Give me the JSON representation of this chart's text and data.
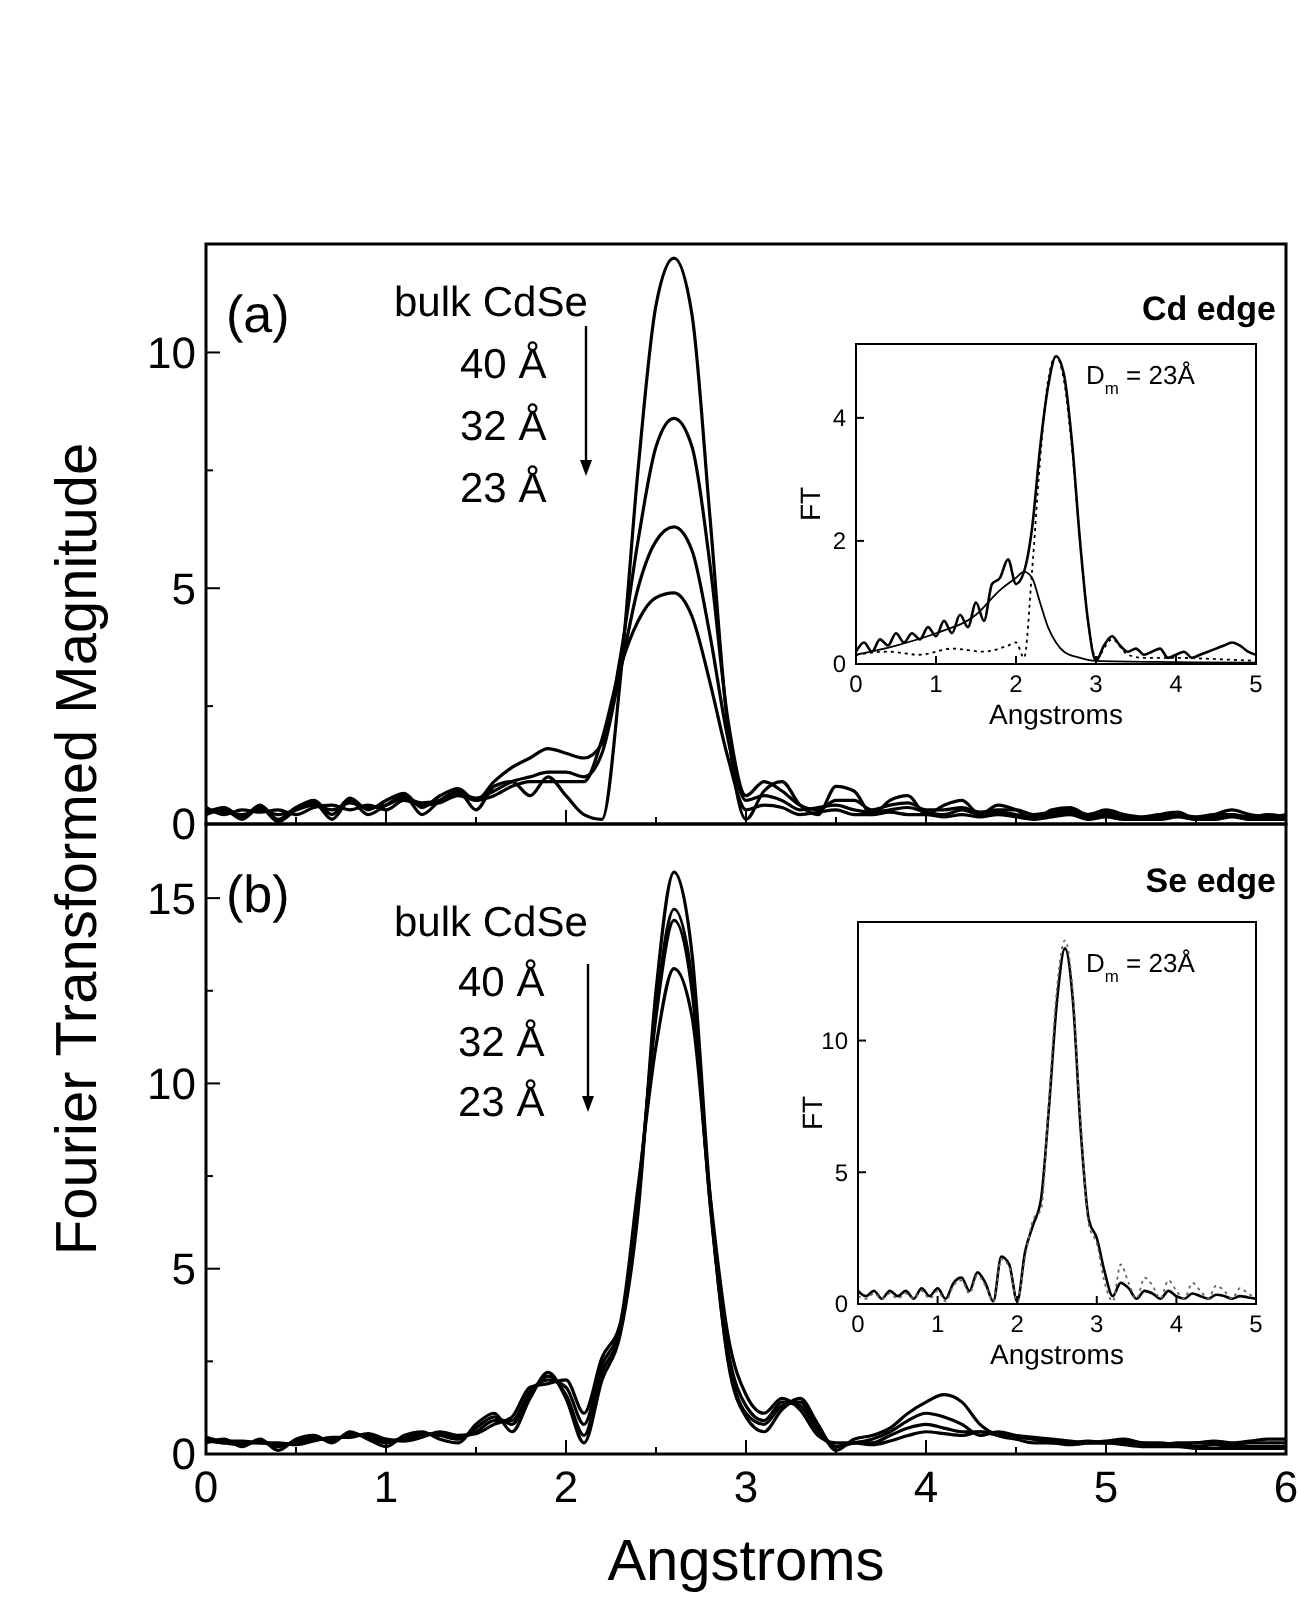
{
  "chart_data": [
    {
      "type": "line",
      "ylabel": "Fourier Transformed Magnitude",
      "annotations": [
        "(a)",
        "Cd edge",
        "bulk CdSe",
        "40 Å",
        "32 Å",
        "23 Å"
      ],
      "xlim": [
        0,
        6
      ],
      "ylim": [
        0,
        12.3
      ],
      "tick_labels": "y",
      "line_style": "solid",
      "xticks": [
        0,
        {
          "value": 0.5,
          "label": null
        },
        1,
        {
          "value": 1.5,
          "label": null
        },
        2,
        {
          "value": 2.5,
          "label": null
        },
        3,
        {
          "value": 3.5,
          "label": null
        },
        4,
        {
          "value": 4.5,
          "label": null
        },
        5,
        {
          "value": 5.5,
          "label": null
        },
        6
      ],
      "yticks": [
        0,
        {
          "value": 2.5,
          "label": null
        },
        5,
        {
          "value": 7.5,
          "label": null
        },
        10
      ],
      "x": [
        0,
        0.1,
        0.2,
        0.3,
        0.4,
        0.5,
        0.6,
        0.7,
        0.8,
        0.9,
        1,
        1.1,
        1.2,
        1.3,
        1.4,
        1.5,
        1.6,
        1.7,
        1.8,
        1.9,
        2,
        2.1,
        2.2,
        2.3,
        2.4,
        2.5,
        2.6,
        2.7,
        2.8,
        2.9,
        3,
        3.1,
        3.2,
        3.3,
        3.4,
        3.5,
        3.6,
        3.7,
        3.8,
        3.9,
        4,
        4.1,
        4.2,
        4.3,
        4.4,
        4.5,
        4.6,
        4.7,
        4.8,
        4.9,
        5,
        5.1,
        5.2,
        5.3,
        5.4,
        5.5,
        5.6,
        5.7,
        5.8,
        5.9,
        6
      ],
      "series": [
        {
          "color": "#000000",
          "values": [
            0.2,
            0.3,
            0.1,
            0.35,
            0.05,
            0.3,
            0.45,
            0.1,
            0.5,
            0.2,
            0.4,
            0.6,
            0.2,
            0.5,
            0.7,
            0.3,
            0.8,
            0.9,
            0.6,
            1.0,
            0.6,
            0.2,
            0.1,
            3.0,
            7.5,
            11.0,
            12.0,
            10.8,
            6.5,
            2.0,
            0.1,
            0.7,
            0.9,
            0.4,
            0.2,
            0.8,
            0.7,
            0.2,
            0.5,
            0.6,
            0.2,
            0.4,
            0.5,
            0.2,
            0.4,
            0.3,
            0.1,
            0.3,
            0.35,
            0.2,
            0.3,
            0.2,
            0.1,
            0.2,
            0.25,
            0.1,
            0.2,
            0.3,
            0.2,
            0.15,
            0.2
          ]
        },
        {
          "color": "#000000",
          "values": [
            0.25,
            0.35,
            0.15,
            0.4,
            0.1,
            0.35,
            0.5,
            0.2,
            0.55,
            0.3,
            0.5,
            0.65,
            0.35,
            0.6,
            0.75,
            0.5,
            0.9,
            1.2,
            1.4,
            1.6,
            1.5,
            1.4,
            1.7,
            3.5,
            6.0,
            8.0,
            8.6,
            8.0,
            5.5,
            2.2,
            0.6,
            0.9,
            0.7,
            0.4,
            0.3,
            0.5,
            0.5,
            0.3,
            0.4,
            0.45,
            0.3,
            0.3,
            0.35,
            0.25,
            0.3,
            0.3,
            0.2,
            0.25,
            0.3,
            0.2,
            0.25,
            0.2,
            0.15,
            0.2,
            0.2,
            0.15,
            0.2,
            0.2,
            0.15,
            0.2,
            0.15
          ]
        },
        {
          "color": "#000000",
          "values": [
            0.3,
            0.25,
            0.2,
            0.3,
            0.2,
            0.3,
            0.4,
            0.3,
            0.45,
            0.35,
            0.4,
            0.55,
            0.45,
            0.5,
            0.65,
            0.55,
            0.7,
            0.9,
            1.0,
            1.1,
            1.1,
            1.0,
            1.5,
            3.2,
            5.0,
            6.0,
            6.3,
            5.8,
            4.0,
            1.8,
            0.5,
            0.6,
            0.5,
            0.3,
            0.35,
            0.4,
            0.3,
            0.25,
            0.3,
            0.35,
            0.25,
            0.2,
            0.3,
            0.2,
            0.25,
            0.2,
            0.15,
            0.2,
            0.25,
            0.15,
            0.2,
            0.15,
            0.1,
            0.15,
            0.2,
            0.1,
            0.15,
            0.2,
            0.1,
            0.15,
            0.1
          ]
        },
        {
          "color": "#000000",
          "values": [
            0.35,
            0.2,
            0.3,
            0.25,
            0.3,
            0.2,
            0.35,
            0.4,
            0.3,
            0.4,
            0.3,
            0.5,
            0.4,
            0.45,
            0.6,
            0.5,
            0.6,
            0.8,
            0.9,
            0.9,
            0.9,
            0.9,
            1.8,
            3.3,
            4.3,
            4.8,
            4.9,
            4.4,
            3.0,
            1.4,
            0.3,
            0.4,
            0.35,
            0.2,
            0.25,
            0.3,
            0.2,
            0.2,
            0.25,
            0.2,
            0.2,
            0.15,
            0.2,
            0.15,
            0.2,
            0.15,
            0.1,
            0.15,
            0.2,
            0.1,
            0.15,
            0.1,
            0.1,
            0.1,
            0.15,
            0.1,
            0.1,
            0.15,
            0.1,
            0.1,
            0.1
          ]
        }
      ]
    },
    {
      "type": "line",
      "xlabel": "Angstroms",
      "ylabel": "FT",
      "annotations": [
        "D$_{m}$ = 23Å"
      ],
      "xlim": [
        0,
        5
      ],
      "ylim": [
        0,
        5.2
      ],
      "xticks": [
        0,
        1,
        2,
        3,
        4,
        5
      ],
      "yticks": [
        0,
        2,
        4
      ],
      "series": [
        {
          "color": "#000000",
          "line_style": "solid",
          "x": [
            0,
            0.1,
            0.2,
            0.3,
            0.4,
            0.5,
            0.6,
            0.7,
            0.8,
            0.9,
            1,
            1.1,
            1.2,
            1.3,
            1.4,
            1.5,
            1.6,
            1.7,
            1.8,
            1.9,
            2,
            2.1,
            2.2,
            2.3,
            2.4,
            2.5,
            2.6,
            2.7,
            2.8,
            2.9,
            3,
            3.1,
            3.2,
            3.3,
            3.4,
            3.5,
            3.6,
            3.7,
            3.8,
            3.9,
            4,
            4.1,
            4.2,
            4.3,
            4.4,
            4.5,
            4.6,
            4.7,
            4.8,
            4.9,
            5
          ],
          "values": [
            0.2,
            0.35,
            0.2,
            0.4,
            0.3,
            0.5,
            0.35,
            0.5,
            0.4,
            0.6,
            0.45,
            0.7,
            0.5,
            0.8,
            0.6,
            1.0,
            0.7,
            1.3,
            1.4,
            1.7,
            1.3,
            1.5,
            2.2,
            3.5,
            4.5,
            5.0,
            4.7,
            3.6,
            2.0,
            0.7,
            0.05,
            0.3,
            0.45,
            0.3,
            0.2,
            0.25,
            0.15,
            0.2,
            0.25,
            0.1,
            0.15,
            0.2,
            0.1,
            0.15,
            0.2,
            0.25,
            0.3,
            0.35,
            0.3,
            0.2,
            0.15
          ]
        },
        {
          "color": "#000000",
          "line_style": "solid",
          "x": [
            0,
            0.5,
            1,
            1.5,
            1.8,
            2,
            2.1,
            2.2,
            2.3,
            2.4,
            2.5,
            2.6,
            2.8,
            3,
            4,
            5
          ],
          "values": [
            0.15,
            0.3,
            0.5,
            0.8,
            1.2,
            1.4,
            1.5,
            1.4,
            1.0,
            0.6,
            0.35,
            0.2,
            0.1,
            0.05,
            0.03,
            0.02
          ]
        },
        {
          "color": "#000000",
          "line_style": "dotted",
          "x": [
            0,
            0.4,
            0.8,
            1.2,
            1.6,
            1.9,
            2,
            2.1,
            2.2,
            2.3,
            2.4,
            2.5,
            2.6,
            2.7,
            2.8,
            2.9,
            3,
            3.2,
            3.4,
            3.6,
            4,
            4.5,
            5
          ],
          "values": [
            0.15,
            0.2,
            0.15,
            0.25,
            0.2,
            0.3,
            0.35,
            0.1,
            1.5,
            3.3,
            4.6,
            5.0,
            4.6,
            3.5,
            2.0,
            0.7,
            0.1,
            0.4,
            0.15,
            0.1,
            0.1,
            0.08,
            0.05
          ]
        }
      ]
    },
    {
      "type": "line",
      "xlabel": "Angstroms",
      "annotations": [
        "(b)",
        "Se edge",
        "bulk CdSe",
        "40 Å",
        "32 Å",
        "23 Å"
      ],
      "xlim": [
        0,
        6
      ],
      "ylim": [
        0,
        17
      ],
      "line_style": "solid",
      "xticks": [
        0,
        {
          "value": 0.5,
          "label": null
        },
        1,
        {
          "value": 1.5,
          "label": null
        },
        2,
        {
          "value": 2.5,
          "label": null
        },
        3,
        {
          "value": 3.5,
          "label": null
        },
        4,
        {
          "value": 4.5,
          "label": null
        },
        5,
        {
          "value": 5.5,
          "label": null
        },
        6
      ],
      "yticks": [
        0,
        {
          "value": 2.5,
          "label": null
        },
        5,
        {
          "value": 7.5,
          "label": null
        },
        10,
        {
          "value": 12.5,
          "label": null
        },
        15
      ],
      "x": [
        0,
        0.1,
        0.2,
        0.3,
        0.4,
        0.5,
        0.6,
        0.7,
        0.8,
        0.9,
        1,
        1.1,
        1.2,
        1.3,
        1.4,
        1.5,
        1.6,
        1.7,
        1.8,
        1.9,
        2,
        2.1,
        2.2,
        2.3,
        2.4,
        2.5,
        2.6,
        2.7,
        2.8,
        2.9,
        3,
        3.1,
        3.2,
        3.3,
        3.4,
        3.5,
        3.6,
        3.7,
        3.8,
        3.9,
        4,
        4.1,
        4.2,
        4.3,
        4.4,
        4.5,
        4.6,
        4.7,
        4.8,
        4.9,
        5,
        5.1,
        5.2,
        5.3,
        5.4,
        5.5,
        5.6,
        5.7,
        5.8,
        5.9,
        6
      ],
      "series": [
        {
          "color": "#000000",
          "values": [
            0.3,
            0.4,
            0.2,
            0.4,
            0.1,
            0.4,
            0.5,
            0.3,
            0.6,
            0.4,
            0.2,
            0.5,
            0.6,
            0.4,
            0.3,
            0.8,
            1.1,
            0.6,
            1.5,
            2.2,
            1.5,
            0.3,
            2.0,
            3.2,
            6.5,
            12.5,
            15.7,
            13.5,
            7.0,
            2.5,
            1.0,
            0.6,
            1.2,
            1.5,
            0.8,
            0.1,
            0.4,
            0.5,
            0.7,
            1.1,
            1.4,
            1.6,
            1.4,
            0.8,
            0.5,
            0.4,
            0.3,
            0.3,
            0.25,
            0.3,
            0.35,
            0.4,
            0.3,
            0.25,
            0.3,
            0.3,
            0.35,
            0.3,
            0.35,
            0.4,
            0.4
          ]
        },
        {
          "color": "#000000",
          "values": [
            0.35,
            0.3,
            0.25,
            0.35,
            0.2,
            0.35,
            0.45,
            0.35,
            0.55,
            0.45,
            0.3,
            0.45,
            0.55,
            0.5,
            0.4,
            0.7,
            1.0,
            0.8,
            1.6,
            2.1,
            1.6,
            0.5,
            2.2,
            3.3,
            6.8,
            12.0,
            14.7,
            12.8,
            6.8,
            2.6,
            1.1,
            0.8,
            1.3,
            1.4,
            0.7,
            0.2,
            0.3,
            0.4,
            0.6,
            0.9,
            1.1,
            1.0,
            0.8,
            0.5,
            0.6,
            0.5,
            0.4,
            0.3,
            0.3,
            0.35,
            0.3,
            0.35,
            0.3,
            0.3,
            0.25,
            0.3,
            0.3,
            0.25,
            0.3,
            0.3,
            0.3
          ]
        },
        {
          "color": "#000000",
          "values": [
            0.4,
            0.3,
            0.3,
            0.3,
            0.25,
            0.3,
            0.4,
            0.4,
            0.5,
            0.5,
            0.35,
            0.4,
            0.5,
            0.55,
            0.45,
            0.6,
            0.9,
            0.9,
            1.7,
            2.0,
            1.8,
            0.8,
            2.4,
            3.4,
            7.0,
            11.8,
            14.4,
            12.5,
            6.8,
            2.8,
            1.3,
            0.9,
            1.4,
            1.3,
            0.6,
            0.2,
            0.3,
            0.3,
            0.5,
            0.7,
            0.8,
            0.7,
            0.6,
            0.6,
            0.5,
            0.45,
            0.4,
            0.35,
            0.3,
            0.3,
            0.3,
            0.3,
            0.25,
            0.25,
            0.25,
            0.2,
            0.25,
            0.2,
            0.2,
            0.2,
            0.2
          ]
        },
        {
          "color": "#000000",
          "values": [
            0.45,
            0.35,
            0.35,
            0.3,
            0.3,
            0.25,
            0.35,
            0.45,
            0.45,
            0.55,
            0.4,
            0.35,
            0.45,
            0.6,
            0.5,
            0.55,
            0.8,
            1.0,
            1.8,
            1.9,
            2.0,
            1.1,
            2.6,
            3.5,
            7.2,
            11.0,
            13.1,
            11.8,
            7.0,
            3.2,
            1.6,
            1.1,
            1.5,
            1.2,
            0.5,
            0.3,
            0.3,
            0.25,
            0.35,
            0.5,
            0.6,
            0.55,
            0.5,
            0.6,
            0.55,
            0.5,
            0.45,
            0.4,
            0.35,
            0.3,
            0.3,
            0.25,
            0.2,
            0.2,
            0.2,
            0.15,
            0.15,
            0.15,
            0.15,
            0.15,
            0.15
          ]
        }
      ]
    },
    {
      "type": "line",
      "xlabel": "Angstroms",
      "ylabel": "FT",
      "annotations": [
        "D$_{m}$ = 23Å"
      ],
      "xlim": [
        0,
        5
      ],
      "ylim": [
        0,
        14.5
      ],
      "xticks": [
        0,
        1,
        2,
        3,
        4,
        5
      ],
      "yticks": [
        0,
        5,
        10
      ],
      "x": [
        0,
        0.1,
        0.2,
        0.3,
        0.4,
        0.5,
        0.6,
        0.7,
        0.8,
        0.9,
        1,
        1.1,
        1.2,
        1.3,
        1.4,
        1.5,
        1.6,
        1.7,
        1.8,
        1.9,
        2,
        2.1,
        2.2,
        2.3,
        2.4,
        2.5,
        2.6,
        2.7,
        2.8,
        2.9,
        3,
        3.1,
        3.2,
        3.3,
        3.4,
        3.5,
        3.6,
        3.7,
        3.8,
        3.9,
        4,
        4.1,
        4.2,
        4.3,
        4.4,
        4.5,
        4.6,
        4.7,
        4.8,
        4.9,
        5
      ],
      "series": [
        {
          "color": "#000000",
          "line_style": "solid",
          "values": [
            0.5,
            0.3,
            0.5,
            0.2,
            0.5,
            0.3,
            0.5,
            0.2,
            0.6,
            0.3,
            0.6,
            0.2,
            0.8,
            1.0,
            0.5,
            1.2,
            0.8,
            0.1,
            1.8,
            1.5,
            0.1,
            2.0,
            3.0,
            4.0,
            7.5,
            11.5,
            13.5,
            11.5,
            6.5,
            3.2,
            2.5,
            1.2,
            0.3,
            0.8,
            0.6,
            0.2,
            0.5,
            0.4,
            0.2,
            0.5,
            0.3,
            0.2,
            0.4,
            0.3,
            0.2,
            0.35,
            0.3,
            0.2,
            0.3,
            0.25,
            0.2
          ]
        },
        {
          "color": "#666666",
          "line_style": "dotted",
          "values": [
            0.3,
            0.2,
            0.4,
            0.2,
            0.4,
            0.2,
            0.4,
            0.2,
            0.5,
            0.2,
            0.5,
            0.1,
            0.7,
            0.9,
            0.4,
            1.1,
            0.7,
            0.1,
            1.7,
            1.4,
            0.1,
            1.8,
            3.2,
            3.6,
            7.8,
            12.0,
            13.8,
            11.8,
            6.8,
            3.0,
            2.3,
            0.8,
            0.1,
            1.5,
            0.8,
            0.2,
            1.0,
            0.7,
            0.2,
            0.9,
            0.5,
            0.2,
            0.8,
            0.5,
            0.2,
            0.7,
            0.5,
            0.2,
            0.6,
            0.4,
            0.2
          ]
        }
      ]
    }
  ]
}
